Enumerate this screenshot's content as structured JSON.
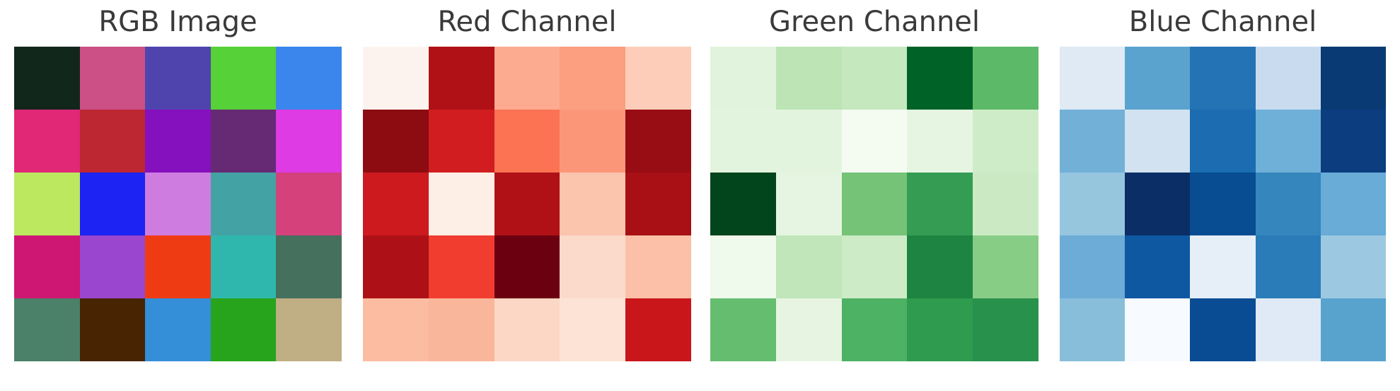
{
  "figure": {
    "background": "#ffffff",
    "title_color": "#3a3a3a"
  },
  "panels": [
    {
      "title": "RGB Image",
      "rows": [
        [
          "#12271c",
          "#cc4f86",
          "#4f44ae",
          "#57d138",
          "#3a86ec"
        ],
        [
          "#e02877",
          "#bc2732",
          "#8510be",
          "#662a74",
          "#de3be4"
        ],
        [
          "#bce860",
          "#1c23f2",
          "#cf7ce0",
          "#43a2a4",
          "#d4417b"
        ],
        [
          "#cd1772",
          "#9a46cf",
          "#ef3b14",
          "#2fb7ad",
          "#44705d"
        ],
        [
          "#4a8168",
          "#482402",
          "#348ed8",
          "#27a41b",
          "#c0ae85"
        ]
      ]
    },
    {
      "title": "Red Channel",
      "rows": [
        [
          "#fdf3ee",
          "#b01116",
          "#fcab90",
          "#fc9e80",
          "#fdcdb9"
        ],
        [
          "#8c0c12",
          "#d11d1f",
          "#fb7353",
          "#fc9679",
          "#980c13"
        ],
        [
          "#cd1a1e",
          "#fdeee6",
          "#b01116",
          "#fac4ad",
          "#a81016"
        ],
        [
          "#ad1117",
          "#f03d30",
          "#6b0010",
          "#fbdacb",
          "#fbc0a7"
        ],
        [
          "#fbbca2",
          "#fab69a",
          "#fcd7c6",
          "#fde3d5",
          "#c8161b"
        ]
      ]
    },
    {
      "title": "Green Channel",
      "rows": [
        [
          "#e2f3dd",
          "#bce4b5",
          "#c5e8bf",
          "#006227",
          "#5cb968"
        ],
        [
          "#e3f4de",
          "#e3f4de",
          "#f4fbf1",
          "#e6f5e1",
          "#cfecc8"
        ],
        [
          "#02441c",
          "#e6f5e1",
          "#74c377",
          "#349d53",
          "#cbeac4"
        ],
        [
          "#eff9ec",
          "#c0e6b9",
          "#cdebc6",
          "#1d8441",
          "#87cd86"
        ],
        [
          "#65bd6f",
          "#e6f4e1",
          "#4eb264",
          "#2e9b4e",
          "#28914c"
        ]
      ]
    },
    {
      "title": "Blue Channel",
      "rows": [
        [
          "#dfeaf5",
          "#5ba3cf",
          "#2473b5",
          "#c9dcef",
          "#093a73"
        ],
        [
          "#72b0d8",
          "#d2e2f1",
          "#1b6cb0",
          "#6fb0d8",
          "#0b3d7f"
        ],
        [
          "#96c5de",
          "#0b2e66",
          "#084d91",
          "#3486bd",
          "#68acd7"
        ],
        [
          "#6cacd6",
          "#0e58a2",
          "#e6eef8",
          "#2a7cb8",
          "#9cc9e1"
        ],
        [
          "#89bedb",
          "#f7fafe",
          "#0a4c94",
          "#dfeaf6",
          "#58a3ce"
        ]
      ]
    }
  ],
  "chart_data": [
    {
      "type": "heatmap",
      "title": "RGB Image",
      "grid_size": [
        5,
        5
      ],
      "pixel_colors": [
        [
          "#12271c",
          "#cc4f86",
          "#4f44ae",
          "#57d138",
          "#3a86ec"
        ],
        [
          "#e02877",
          "#bc2732",
          "#8510be",
          "#662a74",
          "#de3be4"
        ],
        [
          "#bce860",
          "#1c23f2",
          "#cf7ce0",
          "#43a2a4",
          "#d4417b"
        ],
        [
          "#cd1772",
          "#9a46cf",
          "#ef3b14",
          "#2fb7ad",
          "#44705d"
        ],
        [
          "#4a8168",
          "#482402",
          "#348ed8",
          "#27a41b",
          "#c0ae85"
        ]
      ],
      "axes_visible": false
    },
    {
      "type": "heatmap",
      "title": "Red Channel",
      "colormap": "Reds",
      "vrange": [
        0,
        255
      ],
      "values": [
        [
          18,
          204,
          79,
          87,
          58
        ],
        [
          224,
          188,
          133,
          102,
          222
        ],
        [
          188,
          28,
          207,
          67,
          212
        ],
        [
          205,
          154,
          239,
          47,
          68
        ],
        [
          74,
          72,
          52,
          39,
          192
        ]
      ],
      "axes_visible": false
    },
    {
      "type": "heatmap",
      "title": "Green Channel",
      "colormap": "Greens",
      "vrange": [
        0,
        255
      ],
      "values": [
        [
          39,
          79,
          68,
          209,
          134
        ],
        [
          40,
          39,
          16,
          42,
          59
        ],
        [
          232,
          35,
          124,
          162,
          65
        ],
        [
          23,
          70,
          59,
          183,
          112
        ],
        [
          129,
          36,
          142,
          164,
          174
        ]
      ],
      "axes_visible": false
    },
    {
      "type": "heatmap",
      "title": "Blue Channel",
      "colormap": "Blues",
      "vrange": [
        0,
        255
      ],
      "values": [
        [
          28,
          134,
          174,
          56,
          236
        ],
        [
          119,
          50,
          190,
          116,
          228
        ],
        [
          96,
          242,
          224,
          164,
          123
        ],
        [
          114,
          207,
          20,
          173,
          93
        ],
        [
          104,
          2,
          216,
          27,
          133
        ]
      ],
      "axes_visible": false
    }
  ]
}
